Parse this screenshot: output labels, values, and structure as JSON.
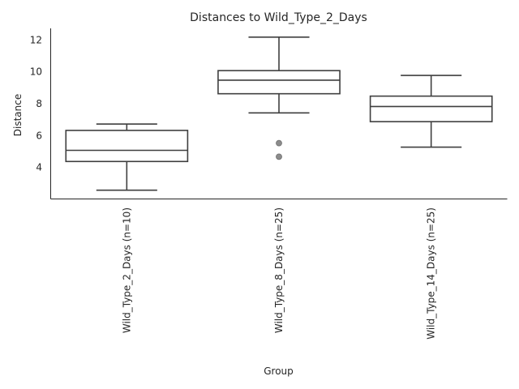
{
  "chart_data": {
    "type": "box",
    "title": "Distances to Wild_Type_2_Days",
    "xlabel": "Group",
    "ylabel": "Distance",
    "ylim": [
      2,
      12.7
    ],
    "yticks": [
      4,
      6,
      8,
      10,
      12
    ],
    "grid": false,
    "legend": "none",
    "categories": [
      "Wild_Type_2_Days (n=10)",
      "Wild_Type_8_Days (n=25)",
      "Wild_Type_14_Days (n=25)"
    ],
    "boxes": [
      {
        "category": "Wild_Type_2_Days (n=10)",
        "whisker_low": 2.55,
        "q1": 4.35,
        "median": 5.05,
        "q3": 6.3,
        "whisker_high": 6.7,
        "outliers": []
      },
      {
        "category": "Wild_Type_8_Days (n=25)",
        "whisker_low": 7.4,
        "q1": 8.6,
        "median": 9.45,
        "q3": 10.05,
        "whisker_high": 12.15,
        "outliers": [
          5.5,
          4.65
        ]
      },
      {
        "category": "Wild_Type_14_Days (n=25)",
        "whisker_low": 5.25,
        "q1": 6.85,
        "median": 7.8,
        "q3": 8.45,
        "whisker_high": 9.75,
        "outliers": []
      }
    ],
    "colors": {
      "line": "#3f3f3f",
      "box_fill": "#ffffff",
      "outlier": "#8c8c8c",
      "axis": "#262626",
      "text": "#262626"
    }
  }
}
